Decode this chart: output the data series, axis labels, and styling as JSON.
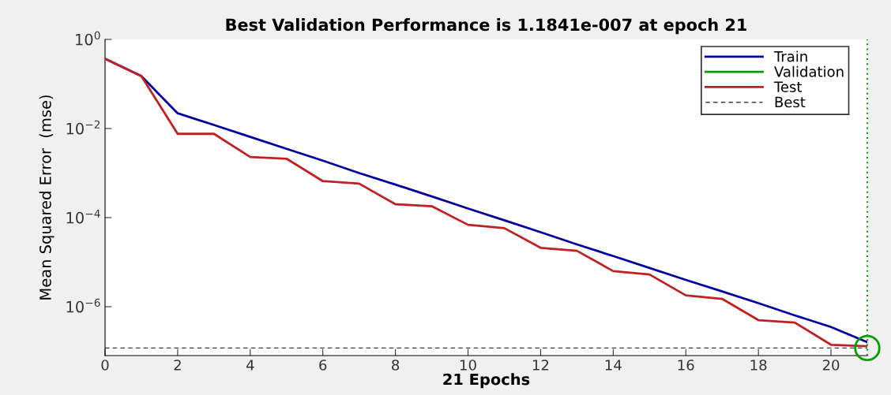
{
  "chart_data": {
    "type": "line",
    "title": "Best Validation Performance is 1.1841e-007 at epoch 21",
    "xlabel": "21 Epochs",
    "ylabel": "Mean Squared Error  (mse)",
    "x": [
      0,
      1,
      2,
      3,
      4,
      5,
      6,
      7,
      8,
      9,
      10,
      11,
      12,
      13,
      14,
      15,
      16,
      17,
      18,
      19,
      20,
      21
    ],
    "series": [
      {
        "name": "Train",
        "color": "#0000a0",
        "values": [
          0.37,
          0.15,
          0.022,
          0.012,
          0.0065,
          0.0035,
          0.0019,
          0.001,
          0.00055,
          0.0003,
          0.00016,
          8.7e-05,
          4.7e-05,
          2.5e-05,
          1.37e-05,
          7.4e-06,
          4e-06,
          2.2e-06,
          1.2e-06,
          6.4e-07,
          3.5e-07,
          1.6e-07
        ]
      },
      {
        "name": "Validation",
        "color": "#00a000",
        "marker": "circle",
        "values": [
          null,
          null,
          null,
          null,
          null,
          null,
          null,
          null,
          null,
          null,
          null,
          null,
          null,
          null,
          null,
          null,
          null,
          null,
          null,
          null,
          null,
          1.1841e-07
        ]
      },
      {
        "name": "Test",
        "color": "#c02020",
        "values": [
          0.37,
          0.15,
          0.0076,
          0.0076,
          0.0023,
          0.0021,
          0.00066,
          0.00058,
          0.0002,
          0.00018,
          6.9e-05,
          5.8e-05,
          2.1e-05,
          1.8e-05,
          6.3e-06,
          5.3e-06,
          1.8e-06,
          1.5e-06,
          5e-07,
          4.4e-07,
          1.4e-07,
          1.3e-07
        ]
      }
    ],
    "ref_lines": [
      {
        "axis": "y",
        "value": 1.1841e-07,
        "label": "Best",
        "color": "#404040",
        "line_style": "dashed"
      },
      {
        "axis": "x",
        "value": 21,
        "color": "#00a000",
        "line_style": "dotted"
      }
    ],
    "log": "y",
    "xlim": [
      0,
      21
    ],
    "xticks": [
      0,
      2,
      4,
      6,
      8,
      10,
      12,
      14,
      16,
      18,
      20
    ],
    "ylim": [
      8e-08,
      1
    ],
    "yticks": [
      {
        "value": 1,
        "label": "10$^{0}$"
      },
      {
        "value": 0.01,
        "label": "10$^{−2}$"
      },
      {
        "value": 0.0001,
        "label": "10$^{−4}$"
      },
      {
        "value": 1e-06,
        "label": "10$^{−6}$"
      }
    ],
    "grid": false,
    "legend": "top right",
    "marker": "none",
    "line_style": "solid"
  }
}
